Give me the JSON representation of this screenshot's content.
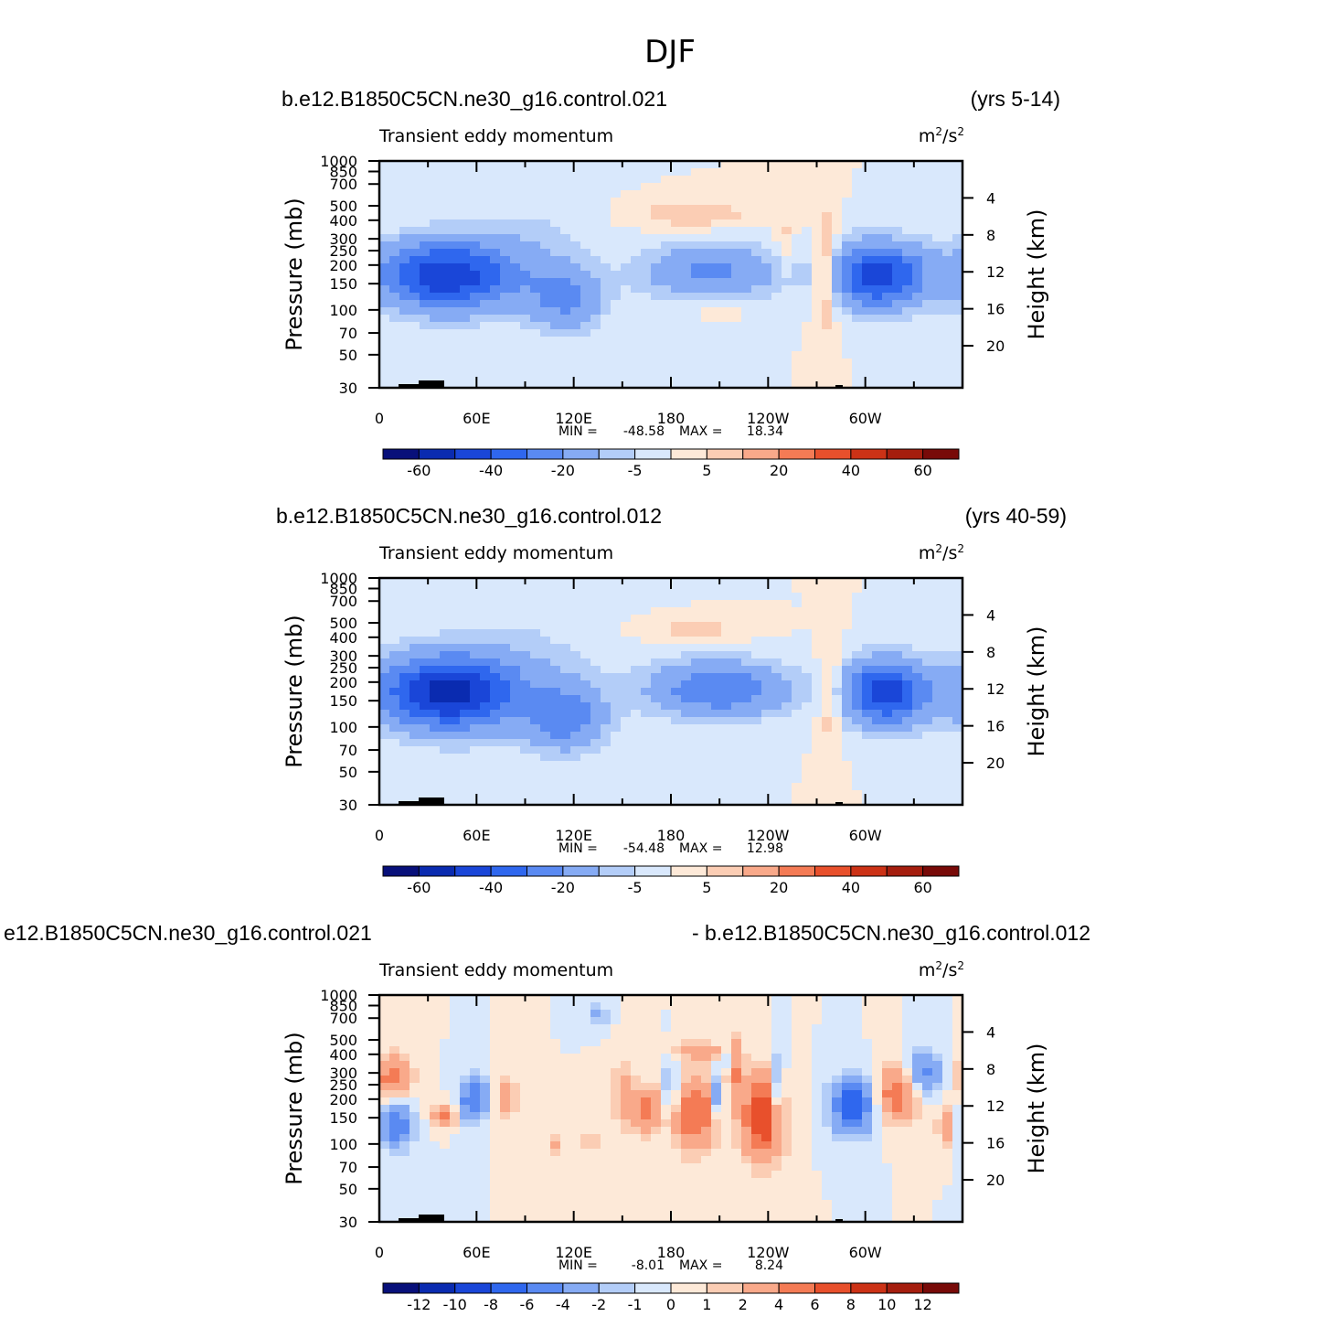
{
  "figure_title": "DJF",
  "colors": {
    "palette": [
      "#08107a",
      "#0a2bb0",
      "#1a46d8",
      "#2f67ee",
      "#5a8af2",
      "#86abf4",
      "#b3cdf8",
      "#d9e8fc",
      "#fde9d8",
      "#fbcdb4",
      "#f9a98a",
      "#f47b55",
      "#e8502c",
      "#cc3216",
      "#a51e0e",
      "#780a08"
    ],
    "terrain": "#000000"
  },
  "chart_data": [
    {
      "type": "heatmap",
      "panel": "top",
      "case_name": "b.e12.B1850C5CN.ne30_g16.control.021",
      "years": "(yrs 5-14)",
      "variable": "Transient eddy momentum",
      "units_base": "m",
      "units_exp1": "2",
      "units_mid": "/s",
      "units_exp2": "2",
      "ylabel": "Pressure (mb)",
      "y2label": "Height (km)",
      "pressure_ticks": [
        "30",
        "50",
        "70",
        "100",
        "150",
        "200",
        "250",
        "300",
        "400",
        "500",
        "700",
        "850",
        "1000"
      ],
      "height_ticks": [
        "20",
        "16",
        "12",
        "8",
        "4"
      ],
      "lon_ticks": [
        "0",
        "60E",
        "120E",
        "180",
        "120W",
        "60W"
      ],
      "min_label": "MIN =",
      "min_value": "-48.58",
      "max_label": "MAX =",
      "max_value": "18.34",
      "contour_levels": [
        -70,
        -60,
        -50,
        -40,
        -30,
        -20,
        -10,
        -5,
        0,
        5,
        10,
        20,
        30,
        40,
        50,
        60,
        70
      ],
      "colorbar_labels": [
        "-60",
        "-40",
        "-20",
        "-5",
        "5",
        "20",
        "40",
        "60"
      ],
      "features": [
        {
          "lon": 42,
          "p": 170,
          "amp": -48,
          "sx": 30,
          "sy": 0.38
        },
        {
          "lon": 115,
          "p": 120,
          "amp": -22,
          "sx": 16,
          "sy": 0.35
        },
        {
          "lon": 205,
          "p": 180,
          "amp": -22,
          "sx": 30,
          "sy": 0.3
        },
        {
          "lon": 308,
          "p": 170,
          "amp": -46,
          "sx": 20,
          "sy": 0.35
        },
        {
          "lon": 275,
          "p": 180,
          "amp": 16,
          "sx": 5,
          "sy": 0.65
        },
        {
          "lon": 250,
          "p": 280,
          "amp": 7,
          "sx": 4,
          "sy": 0.35
        },
        {
          "lon": 195,
          "p": 440,
          "amp": 10,
          "sx": 25,
          "sy": 0.15
        },
        {
          "lon": 210,
          "p": 100,
          "amp": 5,
          "sx": 10,
          "sy": 0.1
        },
        {
          "lon": 95,
          "p": 300,
          "amp": -5,
          "sx": 25,
          "sy": 0.6
        }
      ]
    },
    {
      "type": "heatmap",
      "panel": "middle",
      "case_name": "b.e12.B1850C5CN.ne30_g16.control.012",
      "years": "(yrs 40-59)",
      "variable": "Transient eddy momentum",
      "units_base": "m",
      "units_exp1": "2",
      "units_mid": "/s",
      "units_exp2": "2",
      "ylabel": "Pressure (mb)",
      "y2label": "Height (km)",
      "pressure_ticks": [
        "30",
        "50",
        "70",
        "100",
        "150",
        "200",
        "250",
        "300",
        "400",
        "500",
        "700",
        "850",
        "1000"
      ],
      "height_ticks": [
        "20",
        "16",
        "12",
        "8",
        "4"
      ],
      "lon_ticks": [
        "0",
        "60E",
        "120E",
        "180",
        "120W",
        "60W"
      ],
      "min_label": "MIN =",
      "min_value": "-54.48",
      "max_label": "MAX =",
      "max_value": "12.98",
      "contour_levels": [
        -70,
        -60,
        -50,
        -40,
        -30,
        -20,
        -10,
        -5,
        0,
        5,
        10,
        20,
        30,
        40,
        50,
        60,
        70
      ],
      "colorbar_labels": [
        "-60",
        "-40",
        "-20",
        "-5",
        "5",
        "20",
        "40",
        "60"
      ],
      "features": [
        {
          "lon": 42,
          "p": 170,
          "amp": -54,
          "sx": 30,
          "sy": 0.4
        },
        {
          "lon": 115,
          "p": 115,
          "amp": -25,
          "sx": 17,
          "sy": 0.35
        },
        {
          "lon": 210,
          "p": 180,
          "amp": -30,
          "sx": 30,
          "sy": 0.3
        },
        {
          "lon": 312,
          "p": 170,
          "amp": -46,
          "sx": 18,
          "sy": 0.35
        },
        {
          "lon": 278,
          "p": 170,
          "amp": 12,
          "sx": 5,
          "sy": 0.6
        },
        {
          "lon": 195,
          "p": 450,
          "amp": 8,
          "sx": 22,
          "sy": 0.12
        },
        {
          "lon": 90,
          "p": 250,
          "amp": -6,
          "sx": 35,
          "sy": 0.7
        }
      ]
    },
    {
      "type": "heatmap",
      "panel": "bottom",
      "case_name": "e12.B1850C5CN.ne30_g16.control.021",
      "years": "- b.e12.B1850C5CN.ne30_g16.control.012",
      "variable": "Transient eddy momentum",
      "units_base": "m",
      "units_exp1": "2",
      "units_mid": "/s",
      "units_exp2": "2",
      "ylabel": "Pressure (mb)",
      "y2label": "Height (km)",
      "pressure_ticks": [
        "30",
        "50",
        "70",
        "100",
        "150",
        "200",
        "250",
        "300",
        "400",
        "500",
        "700",
        "850",
        "1000"
      ],
      "height_ticks": [
        "20",
        "16",
        "12",
        "8",
        "4"
      ],
      "lon_ticks": [
        "0",
        "60E",
        "120E",
        "180",
        "120W",
        "60W"
      ],
      "min_label": "MIN =",
      "min_value": "-8.01",
      "max_label": "MAX =",
      "max_value": "8.24",
      "contour_levels": [
        -14,
        -12,
        -10,
        -8,
        -6,
        -4,
        -2,
        -1,
        0,
        1,
        2,
        4,
        6,
        8,
        10,
        12,
        14
      ],
      "colorbar_labels": [
        "-12",
        "-10",
        "-8",
        "-6",
        "-4",
        "-2",
        "-1",
        "0",
        "1",
        "2",
        "4",
        "6",
        "8",
        "10",
        "12"
      ],
      "features": [
        {
          "lon": 10,
          "p": 135,
          "amp": -6,
          "sx": 7,
          "sy": 0.25
        },
        {
          "lon": 8,
          "p": 280,
          "amp": 5,
          "sx": 8,
          "sy": 0.25
        },
        {
          "lon": 40,
          "p": 155,
          "amp": 6,
          "sx": 5,
          "sy": 0.12
        },
        {
          "lon": 58,
          "p": 200,
          "amp": -6,
          "sx": 6,
          "sy": 0.25
        },
        {
          "lon": 78,
          "p": 200,
          "amp": 3,
          "sx": 5,
          "sy": 0.25
        },
        {
          "lon": 108,
          "p": 100,
          "amp": 2.5,
          "sx": 4,
          "sy": 0.1
        },
        {
          "lon": 130,
          "p": 100,
          "amp": 2.5,
          "sx": 4,
          "sy": 0.1
        },
        {
          "lon": 150,
          "p": 220,
          "amp": 2.5,
          "sx": 5,
          "sy": 0.4
        },
        {
          "lon": 165,
          "p": 170,
          "amp": 5,
          "sx": 6,
          "sy": 0.25
        },
        {
          "lon": 195,
          "p": 160,
          "amp": 6,
          "sx": 10,
          "sy": 0.4
        },
        {
          "lon": 180,
          "p": 230,
          "amp": -3,
          "sx": 4,
          "sy": 0.3
        },
        {
          "lon": 210,
          "p": 210,
          "amp": -6,
          "sx": 3,
          "sy": 0.25
        },
        {
          "lon": 218,
          "p": 320,
          "amp": 5,
          "sx": 4,
          "sy": 0.35
        },
        {
          "lon": 237,
          "p": 150,
          "amp": 8,
          "sx": 9,
          "sy": 0.45
        },
        {
          "lon": 215,
          "p": 380,
          "amp": -4,
          "sx": 3,
          "sy": 0.2
        },
        {
          "lon": 246,
          "p": 230,
          "amp": -4,
          "sx": 3,
          "sy": 0.4
        },
        {
          "lon": 292,
          "p": 180,
          "amp": -8,
          "sx": 9,
          "sy": 0.3
        },
        {
          "lon": 320,
          "p": 220,
          "amp": 6,
          "sx": 9,
          "sy": 0.3
        },
        {
          "lon": 335,
          "p": 300,
          "amp": -5,
          "sx": 8,
          "sy": 0.25
        },
        {
          "lon": 350,
          "p": 130,
          "amp": 3.5,
          "sx": 4,
          "sy": 0.2
        },
        {
          "lon": 198,
          "p": 420,
          "amp": 3,
          "sx": 12,
          "sy": 0.1
        },
        {
          "lon": 135,
          "p": 750,
          "amp": -3,
          "sx": 4,
          "sy": 0.12
        }
      ]
    }
  ]
}
